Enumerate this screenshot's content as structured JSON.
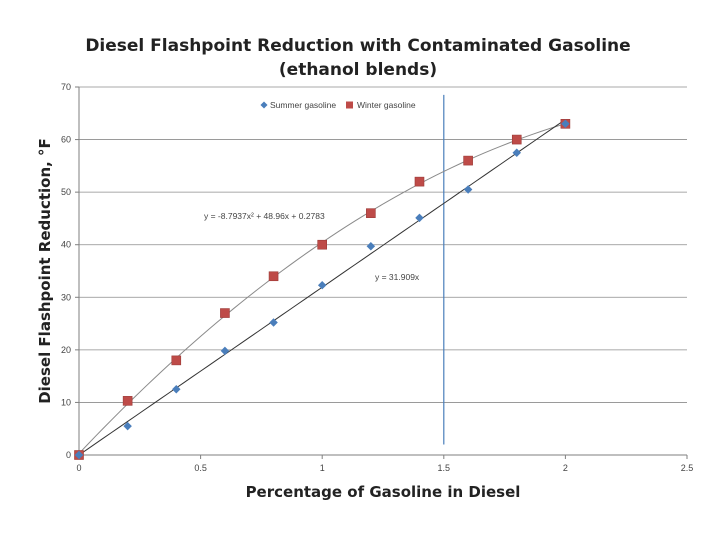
{
  "chart_data": {
    "type": "scatter",
    "title": "Diesel Flashpoint Reduction with Contaminated Gasoline",
    "subtitle": "(ethanol blends)",
    "xlabel": "Percentage of Gasoline in Diesel",
    "ylabel": "Diesel Flashpoint Reduction, °F",
    "xlim": [
      0,
      2.5
    ],
    "ylim": [
      0,
      70
    ],
    "xticks": [
      "0",
      "0.5",
      "1",
      "1.5",
      "2",
      "2.5"
    ],
    "yticks": [
      "0",
      "10",
      "20",
      "30",
      "40",
      "50",
      "60",
      "70"
    ],
    "xtick_values": [
      0,
      0.5,
      1,
      1.5,
      2,
      2.5
    ],
    "ytick_values": [
      0,
      10,
      20,
      30,
      40,
      50,
      60,
      70
    ],
    "grid": "horizontal",
    "legend_position": "top",
    "series": [
      {
        "name": "Summer gasoline",
        "marker": "diamond",
        "color": "#4a7ebb",
        "x": [
          0,
          0.2,
          0.4,
          0.6,
          0.8,
          1.0,
          1.2,
          1.4,
          1.6,
          1.8,
          2.0
        ],
        "y": [
          0,
          5.5,
          12.5,
          19.8,
          25.2,
          32.3,
          39.7,
          45.1,
          50.5,
          57.5,
          63
        ]
      },
      {
        "name": "Winter gasoline",
        "marker": "square",
        "color": "#be4b48",
        "x": [
          0,
          0.2,
          0.4,
          0.6,
          0.8,
          1.0,
          1.2,
          1.4,
          1.6,
          1.8,
          2.0
        ],
        "y": [
          0,
          10.3,
          18,
          27,
          34,
          40,
          46,
          52,
          56,
          60,
          63
        ]
      }
    ],
    "trendlines": [
      {
        "series": "Winter gasoline",
        "equation": "y = -8.7937x² + 48.96x + 0.2783",
        "a": -8.7937,
        "b": 48.96,
        "c": 0.2783,
        "x_range": [
          0,
          2.0
        ]
      },
      {
        "series": "Summer gasoline",
        "equation": "y = 31.909x",
        "a": 0,
        "b": 31.909,
        "c": 0,
        "x_range": [
          0,
          2.0
        ]
      }
    ],
    "reference_line": {
      "orientation": "vertical",
      "x": 1.5,
      "y_range": [
        2,
        68.5
      ],
      "color": "#4a7ebb"
    }
  }
}
